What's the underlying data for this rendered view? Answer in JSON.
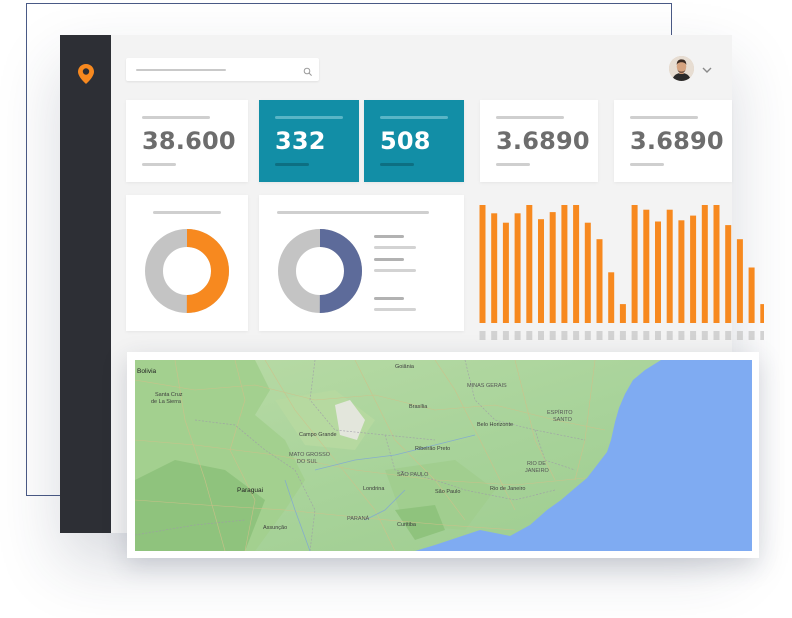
{
  "brand": {
    "accent": "#f7891f",
    "teal": "#128ea6",
    "sidebar": "#2d2f35",
    "slate": "#5d6b9a"
  },
  "header": {
    "logo_icon": "map-pin-icon",
    "search_icon": "search-icon",
    "avatar_icon": "user-avatar",
    "menu_icon": "chevron-down-icon"
  },
  "kpis": [
    {
      "value": "38.600",
      "style": "white"
    },
    {
      "value": "332",
      "style": "teal"
    },
    {
      "value": "508",
      "style": "teal"
    },
    {
      "value": "3.6890",
      "style": "white"
    },
    {
      "value": "3.6890",
      "style": "white"
    }
  ],
  "donuts": [
    {
      "share": 0.5,
      "color": "#f7891f",
      "rest_color": "#c4c4c4"
    },
    {
      "share": 0.5,
      "color": "#5d6b9a",
      "rest_color": "#c4c4c4"
    }
  ],
  "chart_data": {
    "type": "bar",
    "title": "",
    "xlabel": "",
    "ylabel": "",
    "color": "#f7891f",
    "values": [
      100,
      93,
      85,
      93,
      100,
      88,
      94,
      100,
      100,
      85,
      71,
      43,
      16,
      100,
      96,
      86,
      96,
      87,
      91,
      100,
      100,
      83,
      71,
      47,
      16
    ],
    "ylim": [
      0,
      100
    ]
  },
  "map": {
    "labels": [
      {
        "text": "Bolivia",
        "cls": "strong"
      },
      {
        "text": "Santa Cruz",
        "cls": ""
      },
      {
        "text": "de La Sierra",
        "cls": ""
      },
      {
        "text": "Goiânia",
        "cls": ""
      },
      {
        "text": "MINAS GERAIS",
        "cls": "light"
      },
      {
        "text": "Brasília",
        "cls": ""
      },
      {
        "text": "ESPÍRITO",
        "cls": "light"
      },
      {
        "text": "SANTO",
        "cls": "light"
      },
      {
        "text": "Belo Horizonte",
        "cls": ""
      },
      {
        "text": "Campo Grande",
        "cls": ""
      },
      {
        "text": "Ribeirão Preto",
        "cls": ""
      },
      {
        "text": "MATO GROSSO",
        "cls": "light"
      },
      {
        "text": "DO SUL",
        "cls": "light"
      },
      {
        "text": "RIO DE",
        "cls": "light"
      },
      {
        "text": "JANEIRO",
        "cls": "light"
      },
      {
        "text": "SÃO PAULO",
        "cls": "light"
      },
      {
        "text": "Paraguai",
        "cls": "strong"
      },
      {
        "text": "São Paulo",
        "cls": ""
      },
      {
        "text": "Rio de Janeiro",
        "cls": ""
      },
      {
        "text": "Londrina",
        "cls": ""
      },
      {
        "text": "PARANÁ",
        "cls": "light"
      },
      {
        "text": "Curitiba",
        "cls": ""
      },
      {
        "text": "Assunção",
        "cls": ""
      }
    ]
  }
}
